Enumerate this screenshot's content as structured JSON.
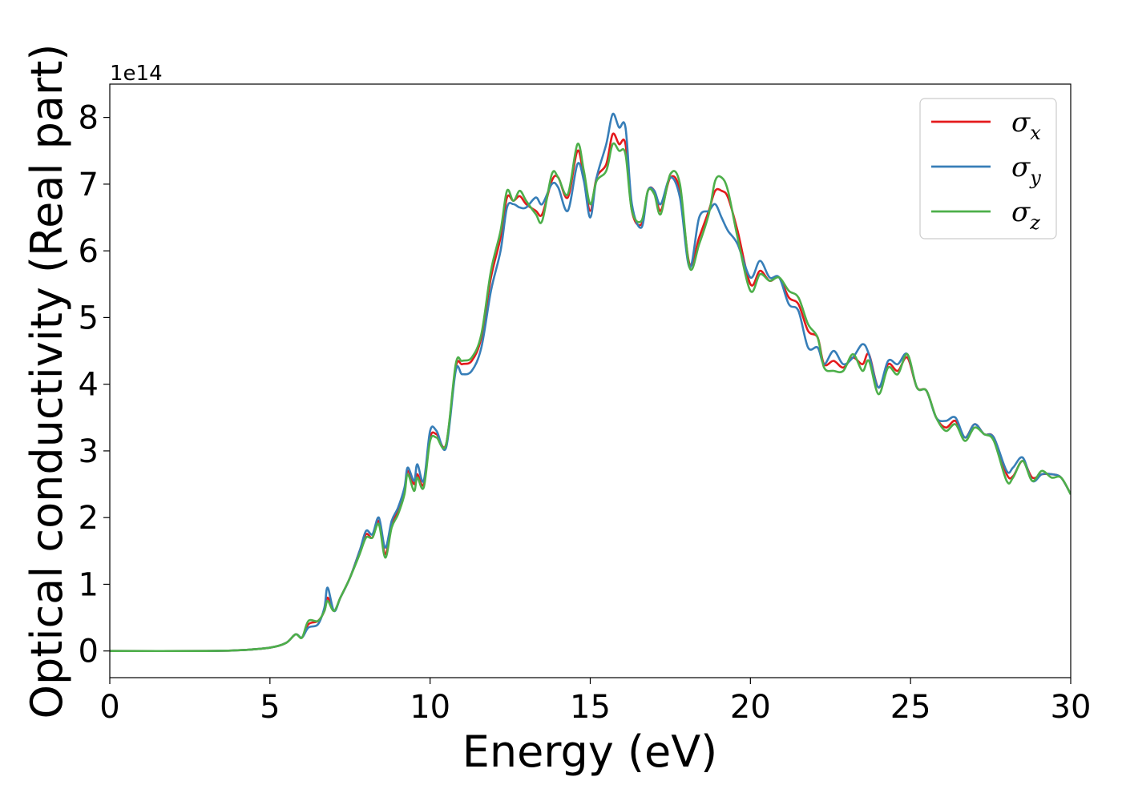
{
  "chart_data": {
    "type": "line",
    "xlabel": "Energy (eV)",
    "ylabel": "Optical conductivity (Real part)",
    "y_offset_label": "1e14",
    "y_scale": 100000000000000.0,
    "xlim": [
      0,
      30
    ],
    "ylim": [
      -0.4,
      8.5
    ],
    "x_ticks": [
      0,
      5,
      10,
      15,
      20,
      25,
      30
    ],
    "y_ticks": [
      0,
      1,
      2,
      3,
      4,
      5,
      6,
      7,
      8
    ],
    "grid": false,
    "legend_position": "top-right",
    "series": [
      {
        "name": "σx",
        "symbol": "σ",
        "subscript": "x",
        "color": "#e41a1c",
        "points": [
          [
            0,
            0
          ],
          [
            3,
            0.0
          ],
          [
            4,
            0.01
          ],
          [
            5,
            0.05
          ],
          [
            5.5,
            0.12
          ],
          [
            5.8,
            0.25
          ],
          [
            6.0,
            0.2
          ],
          [
            6.2,
            0.4
          ],
          [
            6.5,
            0.45
          ],
          [
            6.7,
            0.6
          ],
          [
            6.8,
            0.8
          ],
          [
            7.0,
            0.6
          ],
          [
            7.2,
            0.8
          ],
          [
            7.5,
            1.1
          ],
          [
            7.8,
            1.5
          ],
          [
            8.0,
            1.75
          ],
          [
            8.2,
            1.7
          ],
          [
            8.4,
            1.95
          ],
          [
            8.6,
            1.45
          ],
          [
            8.8,
            1.9
          ],
          [
            9.0,
            2.1
          ],
          [
            9.2,
            2.4
          ],
          [
            9.3,
            2.7
          ],
          [
            9.5,
            2.5
          ],
          [
            9.6,
            2.65
          ],
          [
            9.8,
            2.5
          ],
          [
            10.0,
            3.2
          ],
          [
            10.2,
            3.25
          ],
          [
            10.5,
            3.1
          ],
          [
            10.8,
            4.25
          ],
          [
            11.0,
            4.3
          ],
          [
            11.3,
            4.35
          ],
          [
            11.6,
            4.7
          ],
          [
            11.9,
            5.6
          ],
          [
            12.2,
            6.2
          ],
          [
            12.4,
            6.8
          ],
          [
            12.6,
            6.75
          ],
          [
            12.8,
            6.82
          ],
          [
            13.0,
            6.7
          ],
          [
            13.3,
            6.6
          ],
          [
            13.5,
            6.55
          ],
          [
            13.8,
            7.05
          ],
          [
            14.0,
            7.1
          ],
          [
            14.3,
            6.8
          ],
          [
            14.6,
            7.5
          ],
          [
            14.8,
            7.1
          ],
          [
            15.0,
            6.6
          ],
          [
            15.2,
            7.1
          ],
          [
            15.5,
            7.3
          ],
          [
            15.7,
            7.75
          ],
          [
            15.9,
            7.6
          ],
          [
            16.1,
            7.6
          ],
          [
            16.3,
            6.6
          ],
          [
            16.6,
            6.4
          ],
          [
            16.8,
            6.9
          ],
          [
            17.0,
            6.9
          ],
          [
            17.2,
            6.6
          ],
          [
            17.5,
            7.1
          ],
          [
            17.8,
            6.9
          ],
          [
            18.1,
            5.8
          ],
          [
            18.4,
            6.2
          ],
          [
            18.7,
            6.6
          ],
          [
            18.9,
            6.9
          ],
          [
            19.1,
            6.9
          ],
          [
            19.3,
            6.8
          ],
          [
            19.6,
            6.3
          ],
          [
            20.0,
            5.5
          ],
          [
            20.3,
            5.7
          ],
          [
            20.6,
            5.55
          ],
          [
            20.9,
            5.6
          ],
          [
            21.2,
            5.3
          ],
          [
            21.5,
            5.2
          ],
          [
            21.8,
            4.8
          ],
          [
            22.1,
            4.7
          ],
          [
            22.3,
            4.3
          ],
          [
            22.6,
            4.35
          ],
          [
            22.9,
            4.25
          ],
          [
            23.2,
            4.4
          ],
          [
            23.5,
            4.3
          ],
          [
            23.7,
            4.45
          ],
          [
            24.0,
            3.95
          ],
          [
            24.3,
            4.3
          ],
          [
            24.6,
            4.2
          ],
          [
            24.9,
            4.4
          ],
          [
            25.2,
            3.95
          ],
          [
            25.5,
            3.9
          ],
          [
            25.8,
            3.5
          ],
          [
            26.1,
            3.35
          ],
          [
            26.4,
            3.45
          ],
          [
            26.7,
            3.2
          ],
          [
            27.0,
            3.4
          ],
          [
            27.3,
            3.25
          ],
          [
            27.6,
            3.2
          ],
          [
            28.0,
            2.65
          ],
          [
            28.2,
            2.62
          ],
          [
            28.5,
            2.85
          ],
          [
            28.8,
            2.6
          ],
          [
            29.1,
            2.65
          ],
          [
            29.4,
            2.65
          ],
          [
            29.7,
            2.6
          ],
          [
            30.0,
            2.35
          ]
        ]
      },
      {
        "name": "σy",
        "symbol": "σ",
        "subscript": "y",
        "color": "#377eb8",
        "points": [
          [
            0,
            0
          ],
          [
            3,
            0.0
          ],
          [
            4,
            0.01
          ],
          [
            5,
            0.05
          ],
          [
            5.5,
            0.12
          ],
          [
            5.8,
            0.25
          ],
          [
            6.0,
            0.2
          ],
          [
            6.2,
            0.35
          ],
          [
            6.5,
            0.4
          ],
          [
            6.7,
            0.65
          ],
          [
            6.8,
            0.95
          ],
          [
            7.0,
            0.6
          ],
          [
            7.2,
            0.8
          ],
          [
            7.5,
            1.1
          ],
          [
            7.8,
            1.5
          ],
          [
            8.0,
            1.8
          ],
          [
            8.2,
            1.75
          ],
          [
            8.4,
            2.0
          ],
          [
            8.6,
            1.55
          ],
          [
            8.8,
            1.95
          ],
          [
            9.0,
            2.15
          ],
          [
            9.2,
            2.45
          ],
          [
            9.3,
            2.75
          ],
          [
            9.5,
            2.55
          ],
          [
            9.6,
            2.8
          ],
          [
            9.8,
            2.55
          ],
          [
            10.0,
            3.3
          ],
          [
            10.2,
            3.3
          ],
          [
            10.5,
            3.05
          ],
          [
            10.8,
            4.2
          ],
          [
            11.0,
            4.15
          ],
          [
            11.3,
            4.2
          ],
          [
            11.6,
            4.55
          ],
          [
            11.9,
            5.4
          ],
          [
            12.2,
            6.0
          ],
          [
            12.4,
            6.65
          ],
          [
            12.6,
            6.7
          ],
          [
            12.8,
            6.65
          ],
          [
            13.0,
            6.65
          ],
          [
            13.3,
            6.8
          ],
          [
            13.5,
            6.7
          ],
          [
            13.8,
            7.0
          ],
          [
            14.0,
            6.95
          ],
          [
            14.3,
            6.6
          ],
          [
            14.6,
            7.3
          ],
          [
            14.8,
            7.05
          ],
          [
            15.0,
            6.5
          ],
          [
            15.2,
            7.1
          ],
          [
            15.5,
            7.6
          ],
          [
            15.7,
            8.05
          ],
          [
            15.9,
            7.85
          ],
          [
            16.1,
            7.85
          ],
          [
            16.3,
            6.7
          ],
          [
            16.6,
            6.35
          ],
          [
            16.8,
            6.9
          ],
          [
            17.0,
            6.9
          ],
          [
            17.2,
            6.7
          ],
          [
            17.5,
            7.1
          ],
          [
            17.8,
            6.8
          ],
          [
            18.1,
            5.75
          ],
          [
            18.4,
            6.5
          ],
          [
            18.7,
            6.6
          ],
          [
            18.9,
            6.7
          ],
          [
            19.1,
            6.5
          ],
          [
            19.3,
            6.3
          ],
          [
            19.6,
            6.1
          ],
          [
            20.0,
            5.6
          ],
          [
            20.3,
            5.85
          ],
          [
            20.6,
            5.6
          ],
          [
            20.9,
            5.6
          ],
          [
            21.2,
            5.2
          ],
          [
            21.5,
            5.1
          ],
          [
            21.8,
            4.55
          ],
          [
            22.1,
            4.55
          ],
          [
            22.3,
            4.3
          ],
          [
            22.6,
            4.5
          ],
          [
            22.9,
            4.3
          ],
          [
            23.2,
            4.4
          ],
          [
            23.5,
            4.6
          ],
          [
            23.7,
            4.45
          ],
          [
            24.0,
            3.95
          ],
          [
            24.3,
            4.35
          ],
          [
            24.6,
            4.3
          ],
          [
            24.9,
            4.45
          ],
          [
            25.2,
            3.95
          ],
          [
            25.5,
            3.9
          ],
          [
            25.8,
            3.5
          ],
          [
            26.1,
            3.45
          ],
          [
            26.4,
            3.5
          ],
          [
            26.7,
            3.2
          ],
          [
            27.0,
            3.4
          ],
          [
            27.3,
            3.25
          ],
          [
            27.6,
            3.2
          ],
          [
            28.0,
            2.7
          ],
          [
            28.2,
            2.75
          ],
          [
            28.5,
            2.9
          ],
          [
            28.8,
            2.55
          ],
          [
            29.1,
            2.65
          ],
          [
            29.4,
            2.65
          ],
          [
            29.7,
            2.6
          ],
          [
            30.0,
            2.35
          ]
        ]
      },
      {
        "name": "σz",
        "symbol": "σ",
        "subscript": "z",
        "color": "#4daf4a",
        "points": [
          [
            0,
            0
          ],
          [
            3,
            0.0
          ],
          [
            4,
            0.01
          ],
          [
            5,
            0.05
          ],
          [
            5.5,
            0.12
          ],
          [
            5.8,
            0.25
          ],
          [
            6.0,
            0.2
          ],
          [
            6.2,
            0.45
          ],
          [
            6.5,
            0.45
          ],
          [
            6.7,
            0.6
          ],
          [
            6.8,
            0.75
          ],
          [
            7.0,
            0.6
          ],
          [
            7.2,
            0.8
          ],
          [
            7.5,
            1.1
          ],
          [
            7.8,
            1.45
          ],
          [
            8.0,
            1.7
          ],
          [
            8.2,
            1.7
          ],
          [
            8.4,
            1.9
          ],
          [
            8.6,
            1.4
          ],
          [
            8.8,
            1.85
          ],
          [
            9.0,
            2.05
          ],
          [
            9.2,
            2.35
          ],
          [
            9.3,
            2.65
          ],
          [
            9.5,
            2.4
          ],
          [
            9.6,
            2.6
          ],
          [
            9.8,
            2.45
          ],
          [
            10.0,
            3.15
          ],
          [
            10.2,
            3.2
          ],
          [
            10.5,
            3.1
          ],
          [
            10.8,
            4.3
          ],
          [
            11.0,
            4.35
          ],
          [
            11.3,
            4.4
          ],
          [
            11.6,
            4.75
          ],
          [
            11.9,
            5.7
          ],
          [
            12.2,
            6.3
          ],
          [
            12.4,
            6.9
          ],
          [
            12.6,
            6.75
          ],
          [
            12.8,
            6.9
          ],
          [
            13.0,
            6.75
          ],
          [
            13.3,
            6.55
          ],
          [
            13.5,
            6.45
          ],
          [
            13.8,
            7.15
          ],
          [
            14.0,
            7.1
          ],
          [
            14.3,
            6.85
          ],
          [
            14.6,
            7.6
          ],
          [
            14.8,
            7.2
          ],
          [
            15.0,
            6.7
          ],
          [
            15.2,
            7.05
          ],
          [
            15.5,
            7.2
          ],
          [
            15.7,
            7.6
          ],
          [
            15.9,
            7.5
          ],
          [
            16.1,
            7.45
          ],
          [
            16.3,
            6.6
          ],
          [
            16.6,
            6.45
          ],
          [
            16.8,
            6.9
          ],
          [
            17.0,
            6.85
          ],
          [
            17.2,
            6.55
          ],
          [
            17.5,
            7.15
          ],
          [
            17.8,
            7.0
          ],
          [
            18.1,
            5.75
          ],
          [
            18.4,
            6.1
          ],
          [
            18.7,
            6.55
          ],
          [
            18.9,
            7.05
          ],
          [
            19.1,
            7.1
          ],
          [
            19.3,
            6.9
          ],
          [
            19.6,
            6.2
          ],
          [
            20.0,
            5.4
          ],
          [
            20.3,
            5.65
          ],
          [
            20.6,
            5.55
          ],
          [
            20.9,
            5.6
          ],
          [
            21.2,
            5.4
          ],
          [
            21.5,
            5.3
          ],
          [
            21.8,
            4.9
          ],
          [
            22.1,
            4.7
          ],
          [
            22.3,
            4.25
          ],
          [
            22.6,
            4.2
          ],
          [
            22.9,
            4.2
          ],
          [
            23.2,
            4.45
          ],
          [
            23.5,
            4.2
          ],
          [
            23.7,
            4.35
          ],
          [
            24.0,
            3.85
          ],
          [
            24.3,
            4.25
          ],
          [
            24.6,
            4.15
          ],
          [
            24.9,
            4.45
          ],
          [
            25.2,
            3.95
          ],
          [
            25.5,
            3.9
          ],
          [
            25.8,
            3.5
          ],
          [
            26.1,
            3.3
          ],
          [
            26.4,
            3.4
          ],
          [
            26.7,
            3.15
          ],
          [
            27.0,
            3.35
          ],
          [
            27.3,
            3.25
          ],
          [
            27.6,
            3.15
          ],
          [
            28.0,
            2.55
          ],
          [
            28.2,
            2.6
          ],
          [
            28.5,
            2.85
          ],
          [
            28.8,
            2.55
          ],
          [
            29.1,
            2.7
          ],
          [
            29.4,
            2.6
          ],
          [
            29.7,
            2.6
          ],
          [
            30.0,
            2.35
          ]
        ]
      }
    ]
  }
}
